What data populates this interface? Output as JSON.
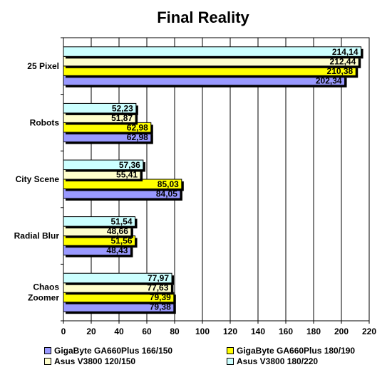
{
  "chart_data": {
    "type": "bar",
    "orientation": "horizontal",
    "title": "Final Reality",
    "categories": [
      "25 Pixel",
      "Robots",
      "City Scene",
      "Radial Blur",
      "Chaos Zoomer"
    ],
    "category_lines": [
      [
        "25 Pixel"
      ],
      [
        "Robots"
      ],
      [
        "City Scene"
      ],
      [
        "Radial Blur"
      ],
      [
        "Chaos",
        "Zoomer"
      ]
    ],
    "series": [
      {
        "name": "GigaByte GA660Plus 166/150",
        "color": "#9999ff",
        "values": [
          202.34,
          62.98,
          84.05,
          48.43,
          79.38
        ],
        "labels": [
          "202,34",
          "62,98",
          "84,05",
          "48,43",
          "79,38"
        ]
      },
      {
        "name": "GigaByte GA660Plus 180/190",
        "color": "#ffff00",
        "values": [
          210.38,
          62.98,
          85.03,
          51.56,
          79.39
        ],
        "labels": [
          "210,38",
          "62,98",
          "85,03",
          "51,56",
          "79,39"
        ]
      },
      {
        "name": "Asus V3800 120/150",
        "color": "#ffffcc",
        "values": [
          212.44,
          51.87,
          55.41,
          48.66,
          77.63
        ],
        "labels": [
          "212,44",
          "51,87",
          "55,41",
          "48,66",
          "77,63"
        ]
      },
      {
        "name": "Asus V3800 180/220",
        "color": "#ccffff",
        "values": [
          214.14,
          52.23,
          57.36,
          51.54,
          77.97
        ],
        "labels": [
          "214,14",
          "52,23",
          "57,36",
          "51,54",
          "77,97"
        ]
      }
    ],
    "xlim": [
      0,
      220
    ],
    "xticks": [
      "0",
      "20",
      "40",
      "60",
      "80",
      "100",
      "120",
      "140",
      "160",
      "180",
      "200",
      "220"
    ],
    "grid": true,
    "legend_position": "bottom"
  }
}
